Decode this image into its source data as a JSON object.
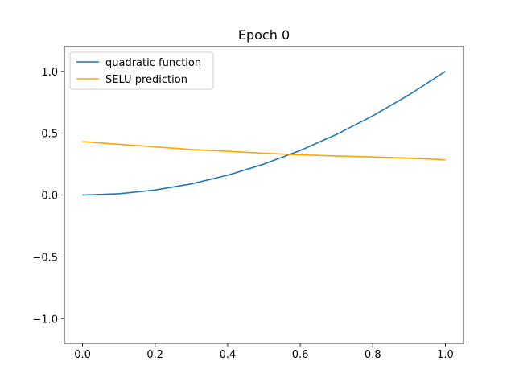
{
  "chart_data": {
    "type": "line",
    "title": "Epoch 0",
    "xlabel": "",
    "ylabel": "",
    "xlim": [
      -0.05,
      1.05
    ],
    "ylim": [
      -1.2,
      1.2
    ],
    "xticks": [
      0.0,
      0.2,
      0.4,
      0.6,
      0.8,
      1.0
    ],
    "xtick_labels": [
      "0.0",
      "0.2",
      "0.4",
      "0.6",
      "0.8",
      "1.0"
    ],
    "yticks": [
      -1.0,
      -0.5,
      0.0,
      0.5,
      1.0
    ],
    "ytick_labels": [
      "−1.0",
      "−0.5",
      "0.0",
      "0.5",
      "1.0"
    ],
    "grid": false,
    "legend_position": "top-left",
    "series": [
      {
        "name": "quadratic function",
        "color": "#1f77b4",
        "x": [
          0.0,
          0.1,
          0.2,
          0.3,
          0.4,
          0.5,
          0.6,
          0.7,
          0.8,
          0.9,
          1.0
        ],
        "y": [
          0.0,
          0.01,
          0.04,
          0.09,
          0.16,
          0.25,
          0.36,
          0.49,
          0.64,
          0.81,
          1.0
        ]
      },
      {
        "name": "SELU prediction",
        "color": "#ffa500",
        "x": [
          0.0,
          0.1,
          0.2,
          0.3,
          0.4,
          0.5,
          0.6,
          0.7,
          0.8,
          0.9,
          1.0
        ],
        "y": [
          0.432,
          0.41,
          0.39,
          0.368,
          0.353,
          0.338,
          0.325,
          0.316,
          0.308,
          0.298,
          0.285
        ]
      }
    ]
  }
}
